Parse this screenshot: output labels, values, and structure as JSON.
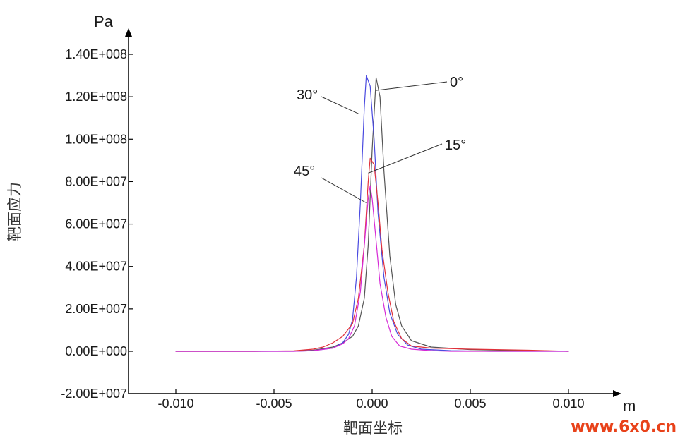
{
  "chart_data": {
    "type": "line",
    "title": "",
    "xlabel": "靶面坐标",
    "ylabel": "靶面应力",
    "x_unit": "m",
    "y_unit": "Pa",
    "xlim": [
      -0.012,
      0.0125
    ],
    "ylim": [
      -20000000,
      145000000
    ],
    "x_ticks": [
      -0.01,
      -0.005,
      0.0,
      0.005,
      0.01
    ],
    "x_tick_labels": [
      "-0.010",
      "-0.005",
      "0.000",
      "0.005",
      "0.010"
    ],
    "y_ticks": [
      -20000000,
      0,
      20000000,
      40000000,
      60000000,
      80000000,
      100000000,
      120000000,
      140000000
    ],
    "y_tick_labels": [
      "-2.00E+007",
      "0.00E+000",
      "2.00E+007",
      "4.00E+007",
      "6.00E+007",
      "8.00E+007",
      "1.00E+008",
      "1.20E+008",
      "1.40E+008"
    ],
    "grid": false,
    "legend": "callouts",
    "series": [
      {
        "name": "0°",
        "color": "#555555",
        "x": [
          -0.01,
          -0.006,
          -0.004,
          -0.003,
          -0.002,
          -0.0015,
          -0.001,
          -0.0007,
          -0.0004,
          -0.0002,
          0.0,
          0.0002,
          0.0004,
          0.0006,
          0.0009,
          0.0012,
          0.0015,
          0.002,
          0.003,
          0.005,
          0.008,
          0.01
        ],
        "y": [
          0,
          0,
          100000,
          500000,
          2000000,
          4000000,
          7000000,
          12000000,
          25000000,
          50000000,
          95000000,
          129000000,
          120000000,
          85000000,
          45000000,
          22000000,
          12000000,
          5000000,
          2000000,
          800000,
          300000,
          0
        ]
      },
      {
        "name": "30°",
        "color": "#4a4ae0",
        "x": [
          -0.01,
          -0.006,
          -0.004,
          -0.003,
          -0.002,
          -0.0015,
          -0.0012,
          -0.001,
          -0.0008,
          -0.0006,
          -0.0004,
          -0.0003,
          -0.0001,
          0.0001,
          0.0003,
          0.0006,
          0.0009,
          0.0013,
          0.0018,
          0.0025,
          0.004,
          0.006,
          0.01
        ],
        "y": [
          0,
          0,
          0,
          300000,
          1500000,
          4000000,
          8000000,
          15000000,
          35000000,
          70000000,
          115000000,
          130000000,
          125000000,
          100000000,
          65000000,
          35000000,
          18000000,
          8000000,
          3000000,
          1000000,
          300000,
          0,
          0
        ]
      },
      {
        "name": "15°",
        "color": "#e0303a",
        "x": [
          -0.01,
          -0.006,
          -0.004,
          -0.003,
          -0.0025,
          -0.002,
          -0.0015,
          -0.001,
          -0.0007,
          -0.0004,
          -0.0002,
          -0.0001,
          0.0001,
          0.0003,
          0.0005,
          0.0008,
          0.0011,
          0.0015,
          0.002,
          0.003,
          0.005,
          0.008,
          0.01
        ],
        "y": [
          0,
          0,
          200000,
          1000000,
          2000000,
          4000000,
          7000000,
          13000000,
          25000000,
          50000000,
          80000000,
          91000000,
          88000000,
          70000000,
          48000000,
          28000000,
          14000000,
          6000000,
          2500000,
          1500000,
          1000000,
          500000,
          0
        ]
      },
      {
        "name": "45°",
        "color": "#d62ad6",
        "x": [
          -0.01,
          -0.006,
          -0.004,
          -0.003,
          -0.002,
          -0.0015,
          -0.0012,
          -0.0009,
          -0.0006,
          -0.0004,
          -0.0002,
          -0.0001,
          0.0,
          0.0002,
          0.0004,
          0.0007,
          0.001,
          0.0014,
          0.002,
          0.003,
          0.004,
          0.006,
          0.01
        ],
        "y": [
          0,
          0,
          0,
          300000,
          1500000,
          3500000,
          6000000,
          12000000,
          28000000,
          50000000,
          72000000,
          78000000,
          72000000,
          52000000,
          32000000,
          16000000,
          7000000,
          2500000,
          1000000,
          300000,
          0,
          0,
          0
        ]
      }
    ],
    "annotations": [
      {
        "text": "0°",
        "series": "0°",
        "point": [
          0.0002,
          123000000
        ]
      },
      {
        "text": "30°",
        "series": "30°",
        "point": [
          -0.0007,
          112000000
        ]
      },
      {
        "text": "15°",
        "series": "15°",
        "point": [
          -0.0002,
          84000000
        ]
      },
      {
        "text": "45°",
        "series": "45°",
        "point": [
          -0.0003,
          70000000
        ]
      }
    ]
  },
  "watermark": {
    "text": "www.6x0.cn",
    "color": "#e8421a"
  }
}
